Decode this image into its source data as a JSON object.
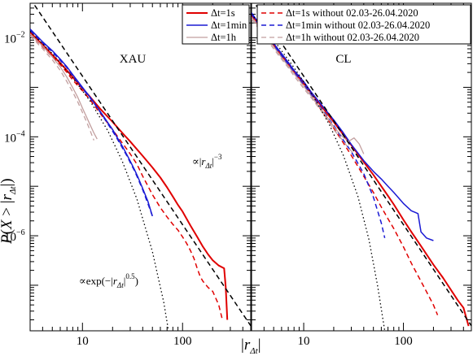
{
  "chart_data": [
    {
      "type": "line",
      "panel_label": "XAU",
      "x_scale": "log",
      "y_scale": "log",
      "xlim": [
        3,
        480
      ],
      "ylim": [
        1.2e-08,
        0.05
      ],
      "x_ticks": [
        10,
        100
      ],
      "x_tick_labels": [
        "10",
        "100"
      ],
      "y_ticks": [
        0.01,
        0.0001,
        1e-06
      ],
      "y_tick_labels": [
        [
          "10",
          "−2"
        ],
        [
          "10",
          "−4"
        ],
        [
          "10",
          "−6"
        ]
      ],
      "legend": {
        "placement": "top-right",
        "entries": [
          "Δt=1s",
          "Δt=1min",
          "Δt=1h"
        ]
      },
      "annotations": {
        "power_law": {
          "prefix": "∝|",
          "var": "r",
          "sub": "Δt",
          "suffix": "|",
          "exp": "−3"
        },
        "stretched_exp": {
          "prefix": "∝exp(−|",
          "var": "r",
          "sub": "Δt",
          "suffix": "|",
          "exp": "0.5",
          "close": ")"
        }
      },
      "series": [
        {
          "name": "Δt=1s",
          "color": "#e00000",
          "dash": "solid",
          "width": 2.0,
          "x": [
            3,
            4,
            5,
            6,
            7,
            8,
            10,
            12,
            15,
            20,
            25,
            30,
            40,
            50,
            60,
            70,
            80,
            90,
            100,
            120,
            140,
            160,
            180,
            200,
            230,
            260,
            270,
            280
          ],
          "y": [
            0.013,
            0.0072,
            0.0045,
            0.0031,
            0.0022,
            0.0016,
            0.00095,
            0.00063,
            0.00037,
            0.0002,
            0.00012,
            8e-05,
            4.1e-05,
            2.4e-05,
            1.5e-05,
            9.5e-06,
            6.2e-06,
            4.2e-06,
            3.1e-06,
            1.6e-06,
            9.5e-07,
            6e-07,
            4.2e-07,
            3.2e-07,
            2.5e-07,
            2.2e-07,
            9e-08,
            2e-08
          ]
        },
        {
          "name": "",
          "color": "#e00000",
          "dash": "dashed",
          "width": 1.5,
          "x": [
            3,
            4,
            5,
            6,
            7,
            8,
            10,
            12,
            15,
            20,
            25,
            30,
            35,
            40,
            50,
            60,
            70,
            80,
            90,
            100,
            110,
            120,
            130,
            140,
            150,
            160,
            180,
            200,
            230,
            250
          ],
          "y": [
            0.012,
            0.0066,
            0.0041,
            0.0029,
            0.002,
            0.0014,
            0.00085,
            0.00055,
            0.0003,
            0.00014,
            7.5e-05,
            4.5e-05,
            2.8e-05,
            1.6e-05,
            6.8e-06,
            3.7e-06,
            2.4e-06,
            1.7e-06,
            1.3e-06,
            9.5e-07,
            7e-07,
            5e-07,
            3.5e-07,
            2.2e-07,
            1.5e-07,
            1.2e-07,
            9e-08,
            7.5e-08,
            4e-08,
            2e-08
          ]
        },
        {
          "name": "Δt=1min",
          "color": "#1a1ad4",
          "dash": "solid",
          "width": 1.5,
          "x": [
            3,
            4,
            5,
            6,
            7,
            8,
            10,
            12,
            14,
            16,
            18,
            20,
            22,
            25,
            28,
            30,
            33,
            36,
            40,
            45,
            50
          ],
          "y": [
            0.015,
            0.0083,
            0.0055,
            0.0037,
            0.0026,
            0.0018,
            0.001,
            0.00062,
            0.0004,
            0.00027,
            0.00019,
            0.00014,
            0.0001,
            6.5e-05,
            4.2e-05,
            3.2e-05,
            2.2e-05,
            1.5e-05,
            9e-06,
            5e-06,
            2.5e-06
          ]
        },
        {
          "name": "",
          "color": "#1a1ad4",
          "dash": "dashed",
          "width": 1.5,
          "x": [
            3,
            4,
            5,
            6,
            7,
            8,
            10,
            12,
            14,
            16,
            18,
            20,
            22,
            25,
            28,
            30,
            33,
            36,
            40,
            45,
            50
          ],
          "y": [
            0.014,
            0.0079,
            0.0052,
            0.0035,
            0.0025,
            0.0017,
            0.00095,
            0.0006,
            0.00039,
            0.00026,
            0.00018,
            0.00013,
            9.5e-05,
            6e-05,
            4e-05,
            3e-05,
            2.1e-05,
            1.4e-05,
            8.5e-06,
            4.5e-06,
            2.5e-06
          ]
        },
        {
          "name": "Δt=1h",
          "color": "#c29f9f",
          "dash": "solid",
          "width": 1.3,
          "x": [
            3,
            4,
            5,
            6,
            7,
            8,
            9,
            10,
            11,
            12,
            13,
            14
          ],
          "y": [
            0.012,
            0.0068,
            0.0041,
            0.0026,
            0.0016,
            0.00098,
            0.00062,
            0.00038,
            0.00025,
            0.00017,
            0.00012,
            9e-05
          ]
        },
        {
          "name": "",
          "color": "#c29f9f",
          "dash": "dashed",
          "width": 1.3,
          "x": [
            3,
            4,
            5,
            6,
            7,
            8,
            9,
            10,
            11,
            12,
            13
          ],
          "y": [
            0.011,
            0.006,
            0.0036,
            0.0022,
            0.0013,
            0.0008,
            0.0005,
            0.00031,
            0.0002,
            0.00013,
            8.5e-05
          ]
        },
        {
          "name": "",
          "color": "#000000",
          "dash": "dashed",
          "width": 1.5,
          "x": [
            3,
            480
          ],
          "y": [
            0.0622,
            1.52e-08
          ]
        },
        {
          "name": "",
          "color": "#000000",
          "dash": "dotted",
          "width": 1.3,
          "x": [
            3,
            5,
            8,
            12,
            18,
            25,
            35,
            50,
            65,
            80
          ],
          "y": [
            0.0135,
            0.0048,
            0.00155,
            0.00052,
            0.00013,
            3.2e-05,
            5.5e-06,
            4.8e-07,
            4.5e-08,
            3.5e-09
          ]
        }
      ]
    },
    {
      "type": "line",
      "panel_label": "CL",
      "x_scale": "log",
      "y_scale": "log",
      "xlim": [
        3,
        480
      ],
      "ylim": [
        1.2e-08,
        0.05
      ],
      "x_ticks": [
        10,
        100
      ],
      "x_tick_labels": [
        "10",
        "100"
      ],
      "y_ticks": [
        0.01,
        0.0001,
        1e-06
      ],
      "legend": {
        "placement": "top-right",
        "entries": [
          "Δt=1s without 02.03-26.04.2020",
          "Δt=1min without 02.03-26.04.2020",
          "Δt=1h without 02.03-26.04.2020"
        ]
      },
      "series": [
        {
          "name": "",
          "color": "#e00000",
          "dash": "solid",
          "width": 2.0,
          "x": [
            3,
            4,
            5,
            6,
            7,
            8,
            10,
            12,
            15,
            20,
            25,
            30,
            40,
            50,
            60,
            70,
            80,
            100,
            120,
            150,
            200,
            250,
            300,
            350,
            400,
            450
          ],
          "y": [
            0.03,
            0.013,
            0.0072,
            0.0045,
            0.003,
            0.0021,
            0.0012,
            0.00075,
            0.00042,
            0.0002,
            0.00011,
            6.8e-05,
            3.1e-05,
            1.7e-05,
            1e-05,
            6.4e-06,
            4.3e-06,
            2.1e-06,
            1.2e-06,
            6.2e-07,
            2.6e-07,
            1.4e-07,
            8e-08,
            5e-08,
            3.5e-08,
            1.5e-08
          ]
        },
        {
          "name": "Δt=1s without 02.03-26.04.2020",
          "color": "#e00000",
          "dash": "dashed",
          "width": 1.5,
          "x": [
            3,
            4,
            5,
            6,
            7,
            8,
            10,
            12,
            15,
            20,
            25,
            30,
            40,
            50,
            60,
            70,
            80,
            100,
            120,
            150,
            180,
            200,
            220
          ],
          "y": [
            0.028,
            0.012,
            0.0068,
            0.0042,
            0.0028,
            0.0019,
            0.0011,
            0.00066,
            0.00035,
            0.00015,
            7.5e-05,
            4.2e-05,
            1.6e-05,
            7.5e-06,
            3.8e-06,
            2.2e-06,
            1.4e-06,
            6e-07,
            2.8e-07,
            1.2e-07,
            6e-08,
            4e-08,
            2.5e-08
          ]
        },
        {
          "name": "",
          "color": "#1a1ad4",
          "dash": "solid",
          "width": 1.5,
          "x": [
            3,
            4,
            5,
            6,
            7,
            8,
            10,
            12,
            15,
            20,
            25,
            30,
            40,
            50,
            60,
            70,
            80,
            100,
            120,
            140,
            150,
            170,
            200
          ],
          "y": [
            0.032,
            0.014,
            0.0077,
            0.0048,
            0.0032,
            0.0022,
            0.0013,
            0.00078,
            0.00045,
            0.00022,
            0.00012,
            7e-05,
            3.3e-05,
            2e-05,
            1.4e-05,
            1e-05,
            7.5e-06,
            4.5e-06,
            3.2e-06,
            2.8e-06,
            1.2e-06,
            9e-07,
            8e-07
          ]
        },
        {
          "name": "Δt=1min without 02.03-26.04.2020",
          "color": "#1a1ad4",
          "dash": "dashed",
          "width": 1.5,
          "x": [
            3,
            4,
            5,
            6,
            7,
            8,
            10,
            12,
            15,
            20,
            25,
            30,
            40,
            50,
            60,
            65
          ],
          "y": [
            0.03,
            0.013,
            0.0071,
            0.0044,
            0.0029,
            0.002,
            0.00115,
            0.0007,
            0.00038,
            0.00017,
            8.5e-05,
            5e-05,
            1.8e-05,
            6e-06,
            1.8e-06,
            9e-07
          ]
        },
        {
          "name": "",
          "color": "#c29f9f",
          "dash": "solid",
          "width": 1.3,
          "x": [
            3,
            4,
            5,
            6,
            7,
            8,
            10,
            12,
            15,
            18,
            20,
            24,
            28,
            32,
            36,
            40
          ],
          "y": [
            0.026,
            0.012,
            0.0066,
            0.004,
            0.0027,
            0.0019,
            0.00105,
            0.00065,
            0.00036,
            0.00022,
            0.00016,
            0.000105,
            8e-05,
            9.5e-05,
            7.2e-05,
            4.5e-05
          ]
        },
        {
          "name": "Δt=1h without 02.03-26.04.2020",
          "color": "#c29f9f",
          "dash": "dashed",
          "width": 1.3,
          "x": [
            3,
            4,
            5,
            6,
            7,
            8,
            10,
            12,
            15,
            18,
            20,
            24,
            28,
            32
          ],
          "y": [
            0.024,
            0.011,
            0.006,
            0.0037,
            0.0025,
            0.0017,
            0.00095,
            0.0006,
            0.00033,
            0.0002,
            0.00014,
            9e-05,
            6e-05,
            4.5e-05
          ]
        },
        {
          "name": "",
          "color": "#000000",
          "dash": "dashed",
          "width": 1.5,
          "x": [
            3,
            480
          ],
          "y": [
            0.0622,
            1.52e-08
          ]
        },
        {
          "name": "",
          "color": "#000000",
          "dash": "dotted",
          "width": 1.3,
          "x": [
            3,
            5,
            8,
            12,
            18,
            25,
            35,
            45,
            55,
            65
          ],
          "y": [
            0.03,
            0.009,
            0.0025,
            0.00075,
            0.00018,
            4.2e-05,
            6.2e-06,
            8.5e-07,
            1e-07,
            1.2e-08
          ]
        }
      ]
    }
  ],
  "axes": {
    "ylabel": {
      "func": "P",
      "open": "(",
      "x": "X",
      "gt": " > |",
      "r": "r",
      "sub": "Δt",
      "close": "|)"
    },
    "xlabel": {
      "bar_open": "|",
      "r": "r",
      "sub": "Δt",
      "bar_close": "|"
    }
  }
}
